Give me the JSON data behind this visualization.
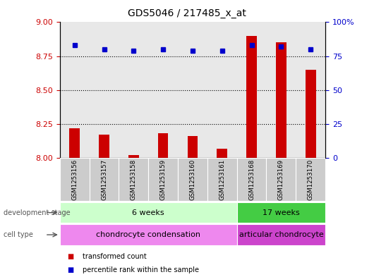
{
  "title": "GDS5046 / 217485_x_at",
  "samples": [
    "GSM1253156",
    "GSM1253157",
    "GSM1253158",
    "GSM1253159",
    "GSM1253160",
    "GSM1253161",
    "GSM1253168",
    "GSM1253169",
    "GSM1253170"
  ],
  "bar_values": [
    8.22,
    8.17,
    8.02,
    8.18,
    8.16,
    8.07,
    8.9,
    8.85,
    8.65
  ],
  "dot_values": [
    83,
    80,
    79,
    80,
    79,
    79,
    83,
    82,
    80
  ],
  "bar_color": "#cc0000",
  "dot_color": "#0000cc",
  "ylim_left": [
    8.0,
    9.0
  ],
  "ylim_right": [
    0,
    100
  ],
  "yticks_left": [
    8.0,
    8.25,
    8.5,
    8.75,
    9.0
  ],
  "yticks_right": [
    0,
    25,
    50,
    75,
    100
  ],
  "grid_vals": [
    8.25,
    8.5,
    8.75
  ],
  "dev_stage_groups": [
    {
      "label": "6 weeks",
      "start": 0,
      "end": 6,
      "color": "#ccffcc"
    },
    {
      "label": "17 weeks",
      "start": 6,
      "end": 9,
      "color": "#44cc44"
    }
  ],
  "cell_type_groups": [
    {
      "label": "chondrocyte condensation",
      "start": 0,
      "end": 6,
      "color": "#ee88ee"
    },
    {
      "label": "articular chondrocyte",
      "start": 6,
      "end": 9,
      "color": "#cc44cc"
    }
  ],
  "legend_items": [
    {
      "label": "transformed count",
      "color": "#cc0000"
    },
    {
      "label": "percentile rank within the sample",
      "color": "#0000cc"
    }
  ],
  "bar_bottom": 8.0,
  "left_label_color": "#cc0000",
  "right_label_color": "#0000cc",
  "background_color": "#ffffff",
  "sample_bg_color": "#cccccc",
  "plot_bg_color": "#ffffff"
}
